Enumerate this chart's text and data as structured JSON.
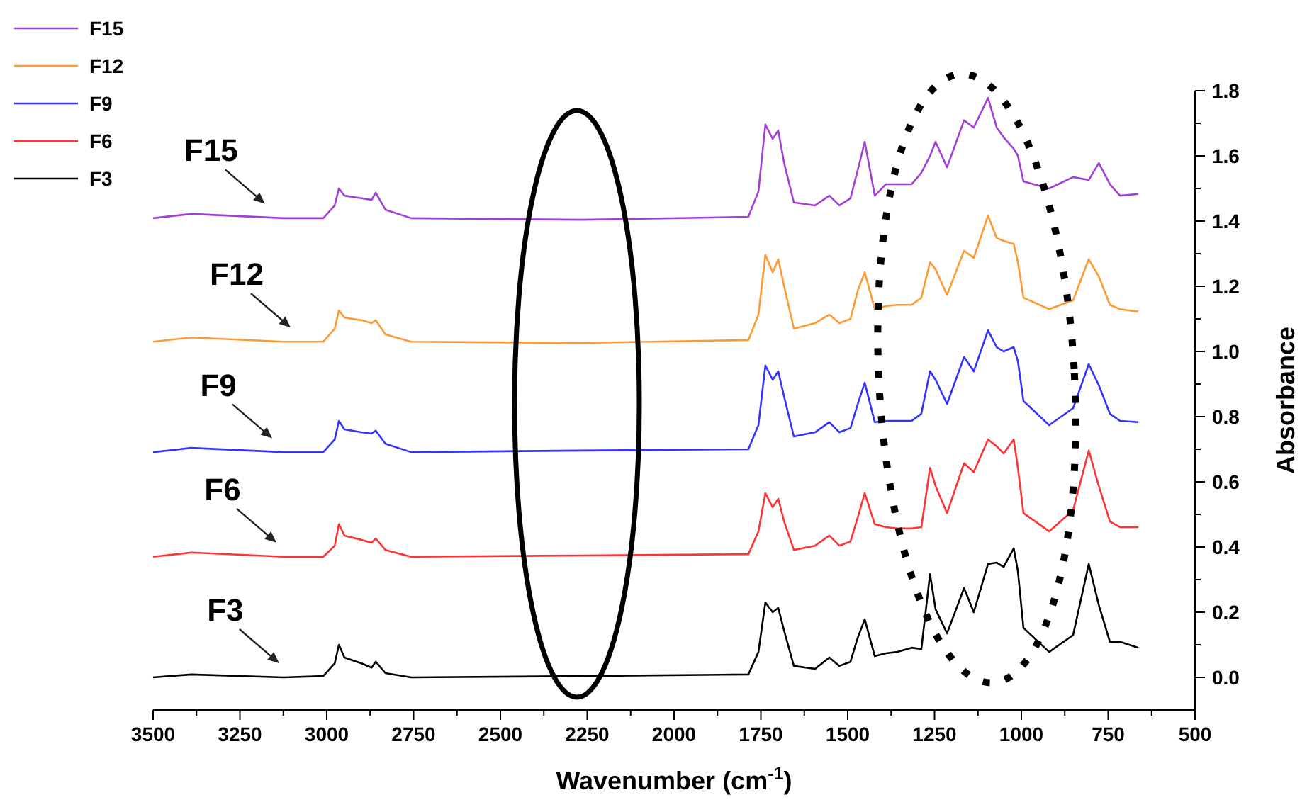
{
  "chart_data": {
    "type": "line",
    "xlabel": "Wavenumber (cm$^{-1}$)",
    "ylabel": "Absorbance",
    "xlim": [
      3500,
      500
    ],
    "ylim": [
      -0.1,
      1.8
    ],
    "xticks": [
      3500,
      {
        "value": 3375,
        "label": null
      },
      3250,
      {
        "value": 3125,
        "label": null
      },
      3000,
      {
        "value": 2875,
        "label": null
      },
      2750,
      {
        "value": 2625,
        "label": null
      },
      2500,
      {
        "value": 2375,
        "label": null
      },
      2250,
      {
        "value": 2125,
        "label": null
      },
      2000,
      {
        "value": 1875,
        "label": null
      },
      1750,
      {
        "value": 1625,
        "label": null
      },
      1500,
      {
        "value": 1375,
        "label": null
      },
      1250,
      {
        "value": 1125,
        "label": null
      },
      1000,
      {
        "value": 875,
        "label": null
      },
      750,
      {
        "value": 625,
        "label": null
      },
      500
    ],
    "yticks": [
      {
        "value": 0,
        "label": "0.0"
      },
      {
        "value": 0.1,
        "label": null
      },
      0.2,
      {
        "value": 0.3,
        "label": null
      },
      0.4,
      {
        "value": 0.5,
        "label": null
      },
      0.6,
      {
        "value": 0.7,
        "label": null
      },
      0.8,
      {
        "value": 0.9,
        "label": null
      },
      {
        "value": 1,
        "label": "1.0"
      },
      {
        "value": 1.1,
        "label": null
      },
      1.2,
      {
        "value": 1.3,
        "label": null
      },
      1.4,
      {
        "value": 1.5,
        "label": null
      },
      1.6,
      {
        "value": 1.7,
        "label": null
      },
      1.8
    ],
    "grid": false,
    "legend": "top left",
    "marker": "none",
    "line_style": "solid",
    "x": [
      3500,
      3390,
      3124,
      3010,
      2977,
      2965,
      2949,
      2900,
      2871,
      2859,
      2831,
      2757,
      2267,
      1786,
      1757,
      1737,
      1716,
      1700,
      1683,
      1655,
      1594,
      1553,
      1524,
      1492,
      1471,
      1451,
      1422,
      1390,
      1357,
      1316,
      1288,
      1263,
      1247,
      1214,
      1165,
      1137,
      1096,
      1071,
      1051,
      1022,
      1010,
      994,
      920,
      851,
      806,
      777,
      745,
      716,
      663
    ],
    "series": [
      {
        "name": "F15",
        "color": "#a040d8",
        "values": [
          1.409,
          1.422,
          1.409,
          1.409,
          1.448,
          1.5,
          1.478,
          1.47,
          1.465,
          1.487,
          1.435,
          1.409,
          1.404,
          1.413,
          1.491,
          1.696,
          1.652,
          1.678,
          1.578,
          1.457,
          1.448,
          1.478,
          1.448,
          1.47,
          1.557,
          1.643,
          1.478,
          1.513,
          1.513,
          1.513,
          1.548,
          1.6,
          1.643,
          1.565,
          1.709,
          1.687,
          1.778,
          1.687,
          1.657,
          1.622,
          1.6,
          1.522,
          1.5,
          1.535,
          1.526,
          1.578,
          1.513,
          1.478,
          1.483
        ]
      },
      {
        "name": "F12",
        "color": "#ff9933",
        "values": [
          1.03,
          1.043,
          1.03,
          1.03,
          1.07,
          1.126,
          1.104,
          1.096,
          1.087,
          1.096,
          1.052,
          1.03,
          1.026,
          1.035,
          1.113,
          1.296,
          1.243,
          1.283,
          1.2,
          1.07,
          1.087,
          1.113,
          1.087,
          1.1,
          1.187,
          1.243,
          1.13,
          1.139,
          1.143,
          1.143,
          1.165,
          1.274,
          1.252,
          1.174,
          1.309,
          1.287,
          1.417,
          1.348,
          1.339,
          1.33,
          1.274,
          1.165,
          1.13,
          1.157,
          1.283,
          1.23,
          1.143,
          1.13,
          1.122
        ]
      },
      {
        "name": "F9",
        "color": "#3333ff",
        "values": [
          0.691,
          0.704,
          0.691,
          0.691,
          0.73,
          0.787,
          0.761,
          0.752,
          0.748,
          0.757,
          0.717,
          0.691,
          0.696,
          0.7,
          0.774,
          0.957,
          0.913,
          0.939,
          0.861,
          0.739,
          0.752,
          0.783,
          0.752,
          0.765,
          0.839,
          0.904,
          0.783,
          0.787,
          0.787,
          0.787,
          0.809,
          0.939,
          0.913,
          0.839,
          0.983,
          0.939,
          1.065,
          1.013,
          1.0,
          1.013,
          0.97,
          0.848,
          0.774,
          0.826,
          0.961,
          0.896,
          0.809,
          0.787,
          0.783
        ]
      },
      {
        "name": "F6",
        "color": "#ff3333",
        "values": [
          0.37,
          0.383,
          0.37,
          0.37,
          0.404,
          0.47,
          0.435,
          0.422,
          0.413,
          0.426,
          0.391,
          0.37,
          0.374,
          0.378,
          0.448,
          0.565,
          0.522,
          0.548,
          0.478,
          0.391,
          0.404,
          0.435,
          0.404,
          0.417,
          0.491,
          0.565,
          0.47,
          0.461,
          0.457,
          0.457,
          0.461,
          0.643,
          0.587,
          0.504,
          0.657,
          0.63,
          0.73,
          0.709,
          0.687,
          0.73,
          0.643,
          0.504,
          0.448,
          0.513,
          0.696,
          0.587,
          0.478,
          0.461,
          0.461
        ]
      },
      {
        "name": "F3",
        "color": "#000000",
        "values": [
          0.0,
          0.009,
          0.0,
          0.004,
          0.043,
          0.1,
          0.061,
          0.043,
          0.03,
          0.048,
          0.013,
          0.0,
          0.004,
          0.009,
          0.078,
          0.23,
          0.2,
          0.213,
          0.143,
          0.035,
          0.026,
          0.061,
          0.035,
          0.048,
          0.122,
          0.178,
          0.065,
          0.074,
          0.078,
          0.091,
          0.087,
          0.317,
          0.209,
          0.135,
          0.274,
          0.2,
          0.348,
          0.352,
          0.339,
          0.396,
          0.326,
          0.152,
          0.078,
          0.13,
          0.348,
          0.222,
          0.109,
          0.109,
          0.091
        ]
      }
    ],
    "annotations": [
      {
        "text": "F15",
        "x": 3178,
        "y": 1.41
      },
      {
        "text": "F12",
        "x": 3104,
        "y": 1.03
      },
      {
        "text": "F9",
        "x": 3157,
        "y": 0.69
      },
      {
        "text": "F6",
        "x": 3145,
        "y": 0.37
      },
      {
        "text": "F3",
        "x": 3137,
        "y": 0.0
      }
    ]
  }
}
